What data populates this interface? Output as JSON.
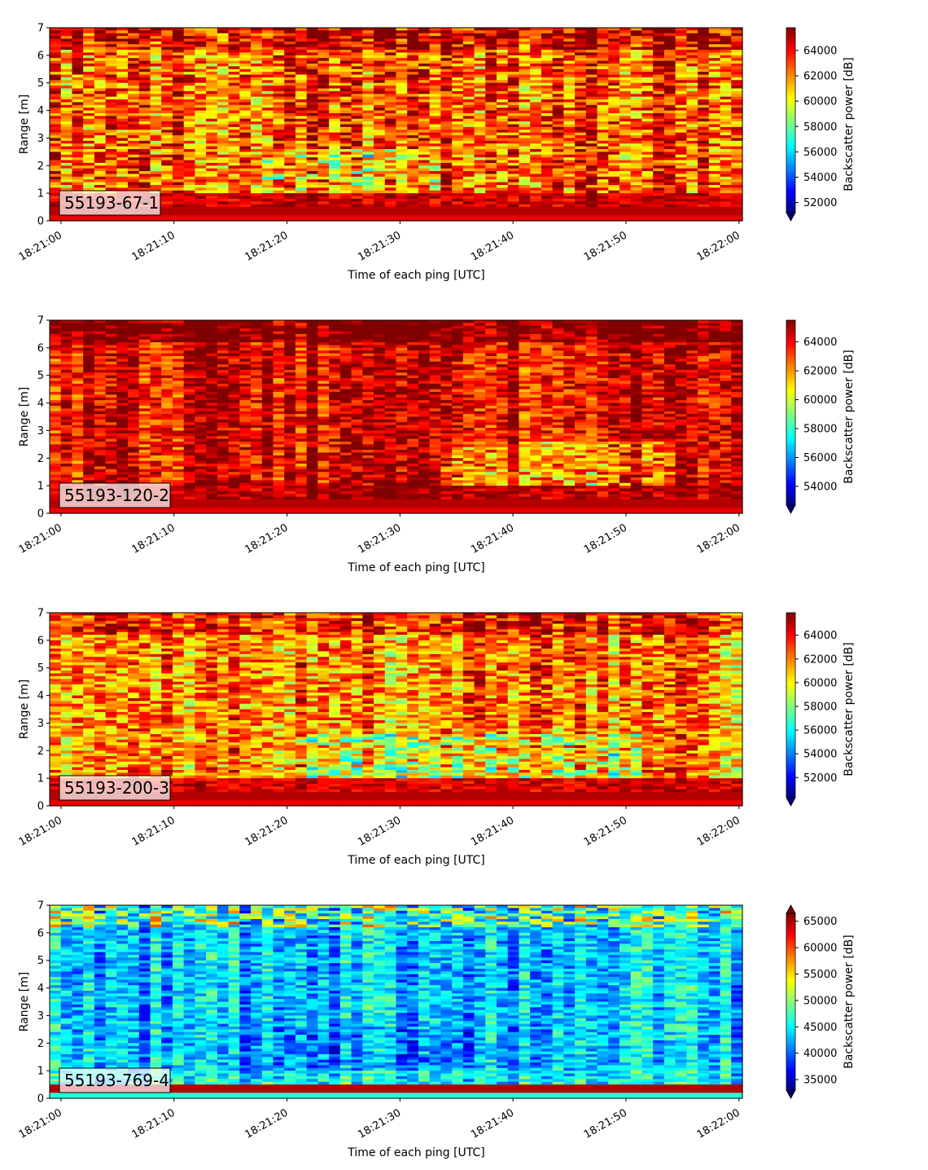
{
  "chart_data": [
    {
      "type": "heatmap",
      "label": "55193-67-1",
      "xlabel": "Time of each ping [UTC]",
      "ylabel": "Range [m]",
      "x_ticks": [
        "18:21:00",
        "18:21:10",
        "18:21:20",
        "18:21:30",
        "18:21:40",
        "18:21:50",
        "18:22:00"
      ],
      "y_ticks": [
        "0",
        "1",
        "2",
        "3",
        "4",
        "5",
        "6",
        "7"
      ],
      "xlim_seconds": [
        -1,
        60.3
      ],
      "ylim": [
        0,
        7
      ],
      "colorbar": {
        "label": "Backscatter power [dB]",
        "vmin": 51200,
        "vmax": 65800,
        "ticks": [
          52000,
          54000,
          56000,
          58000,
          60000,
          62000,
          64000
        ],
        "tick_labels": [
          "52000",
          "54000",
          "56000",
          "58000",
          "60000",
          "62000",
          "64000"
        ],
        "extend": "min"
      },
      "pattern": "mostly red/orange with yellow-green patches, blue patches near 1-2 m mid-record, saturated red band below 1 m"
    },
    {
      "type": "heatmap",
      "label": "55193-120-2",
      "xlabel": "Time of each ping [UTC]",
      "ylabel": "Range [m]",
      "x_ticks": [
        "18:21:00",
        "18:21:10",
        "18:21:20",
        "18:21:30",
        "18:21:40",
        "18:21:50",
        "18:22:00"
      ],
      "y_ticks": [
        "0",
        "1",
        "2",
        "3",
        "4",
        "5",
        "6",
        "7"
      ],
      "xlim_seconds": [
        -1,
        60.3
      ],
      "ylim": [
        0,
        7
      ],
      "colorbar": {
        "label": "Backscatter power [dB]",
        "vmin": 52700,
        "vmax": 65500,
        "ticks": [
          54000,
          56000,
          58000,
          60000,
          62000,
          64000
        ],
        "tick_labels": [
          "54000",
          "56000",
          "58000",
          "60000",
          "62000",
          "64000"
        ],
        "extend": "min"
      },
      "pattern": "dominantly dark red with orange/yellow streaks, few blue blocks near 0.5-1 m"
    },
    {
      "type": "heatmap",
      "label": "55193-200-3",
      "xlabel": "Time of each ping [UTC]",
      "ylabel": "Range [m]",
      "x_ticks": [
        "18:21:00",
        "18:21:10",
        "18:21:20",
        "18:21:30",
        "18:21:40",
        "18:21:50",
        "18:22:00"
      ],
      "y_ticks": [
        "0",
        "1",
        "2",
        "3",
        "4",
        "5",
        "6",
        "7"
      ],
      "xlim_seconds": [
        -1,
        60.3
      ],
      "ylim": [
        0,
        7
      ],
      "colorbar": {
        "label": "Backscatter power [dB]",
        "vmin": 50300,
        "vmax": 65900,
        "ticks": [
          52000,
          54000,
          56000,
          58000,
          60000,
          62000,
          64000
        ],
        "tick_labels": [
          "52000",
          "54000",
          "56000",
          "58000",
          "60000",
          "62000",
          "64000"
        ],
        "extend": "min"
      },
      "pattern": "mixed orange/yellow/green, dark red near top, blue patches near 1 m, red band at bottom"
    },
    {
      "type": "heatmap",
      "label": "55193-769-4",
      "xlabel": "Time of each ping [UTC]",
      "ylabel": "Range [m]",
      "x_ticks": [
        "18:21:00",
        "18:21:10",
        "18:21:20",
        "18:21:30",
        "18:21:40",
        "18:21:50",
        "18:22:00"
      ],
      "y_ticks": [
        "0",
        "1",
        "2",
        "3",
        "4",
        "5",
        "6",
        "7"
      ],
      "xlim_seconds": [
        -1,
        60.3
      ],
      "ylim": [
        0,
        7
      ],
      "colorbar": {
        "label": "Backscatter power [dB]",
        "vmin": 33000,
        "vmax": 66500,
        "ticks": [
          35000,
          40000,
          45000,
          50000,
          55000,
          60000,
          65000
        ],
        "tick_labels": [
          "35000",
          "40000",
          "45000",
          "50000",
          "55000",
          "60000",
          "65000"
        ],
        "extend": "both"
      },
      "pattern": "mostly blue/cyan, red streaks near 6-7 m, dark blue near 1.5-2.5 m, red band near 0.3 m"
    }
  ],
  "colors": {
    "jet": [
      "#000080",
      "#0000ff",
      "#00ffff",
      "#ffff00",
      "#ff0000",
      "#800000"
    ],
    "label_box_fill": "#ffffff",
    "axis": "#000000"
  }
}
